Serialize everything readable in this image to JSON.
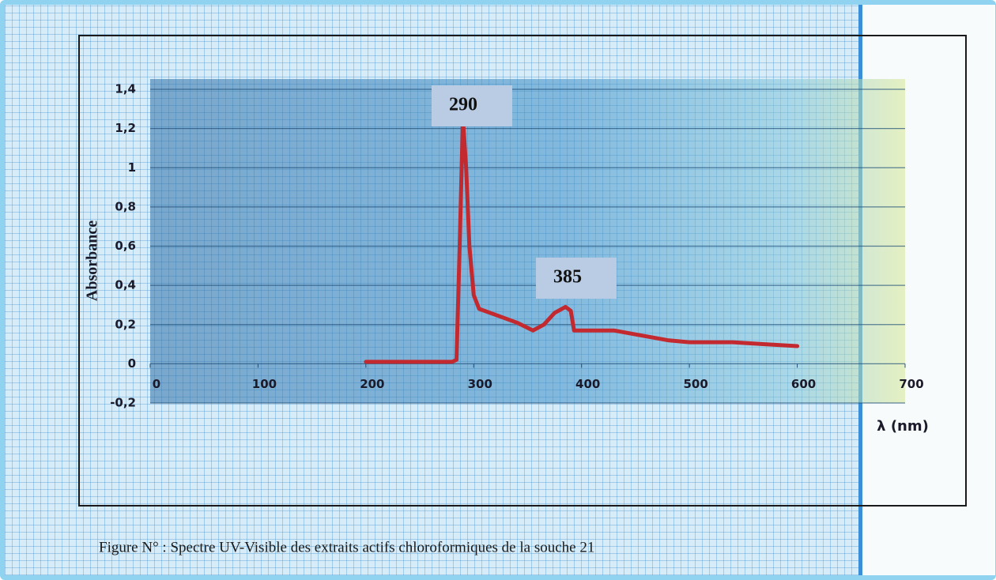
{
  "chart_data": {
    "type": "line",
    "x_label": "λ (nm)",
    "y_label": "Absorbance",
    "caption": "Figure N° : Spectre UV-Visible des extraits actifs chloroformiques de la souche 21",
    "annotations": [
      "290",
      "385"
    ],
    "x": [
      200,
      250,
      280,
      284,
      287,
      290,
      293,
      296,
      300,
      305,
      320,
      340,
      355,
      365,
      375,
      385,
      390,
      393,
      400,
      430,
      450,
      480,
      500,
      540,
      570,
      600
    ],
    "series": [
      {
        "color": "#c22a30",
        "values": [
          0.01,
          0.01,
          0.01,
          0.02,
          0.6,
          1.25,
          1.0,
          0.6,
          0.35,
          0.28,
          0.25,
          0.21,
          0.17,
          0.2,
          0.26,
          0.29,
          0.27,
          0.17,
          0.17,
          0.17,
          0.15,
          0.12,
          0.11,
          0.11,
          0.1,
          0.09
        ]
      }
    ],
    "xlim": [
      0,
      700
    ],
    "xticks": [
      0,
      100,
      200,
      300,
      400,
      500,
      600,
      700
    ],
    "ylim": [
      -0.2,
      1.4
    ],
    "yticks": [
      {
        "value": -0.2,
        "label": "-0,2"
      },
      0,
      {
        "value": 0.2,
        "label": "0,2"
      },
      {
        "value": 0.4,
        "label": "0,4"
      },
      {
        "value": 0.6,
        "label": "0,6"
      },
      {
        "value": 0.8,
        "label": "0,8"
      },
      1,
      {
        "value": 1.2,
        "label": "1,2"
      },
      {
        "value": 1.4,
        "label": "1,4"
      }
    ],
    "grid": true
  }
}
